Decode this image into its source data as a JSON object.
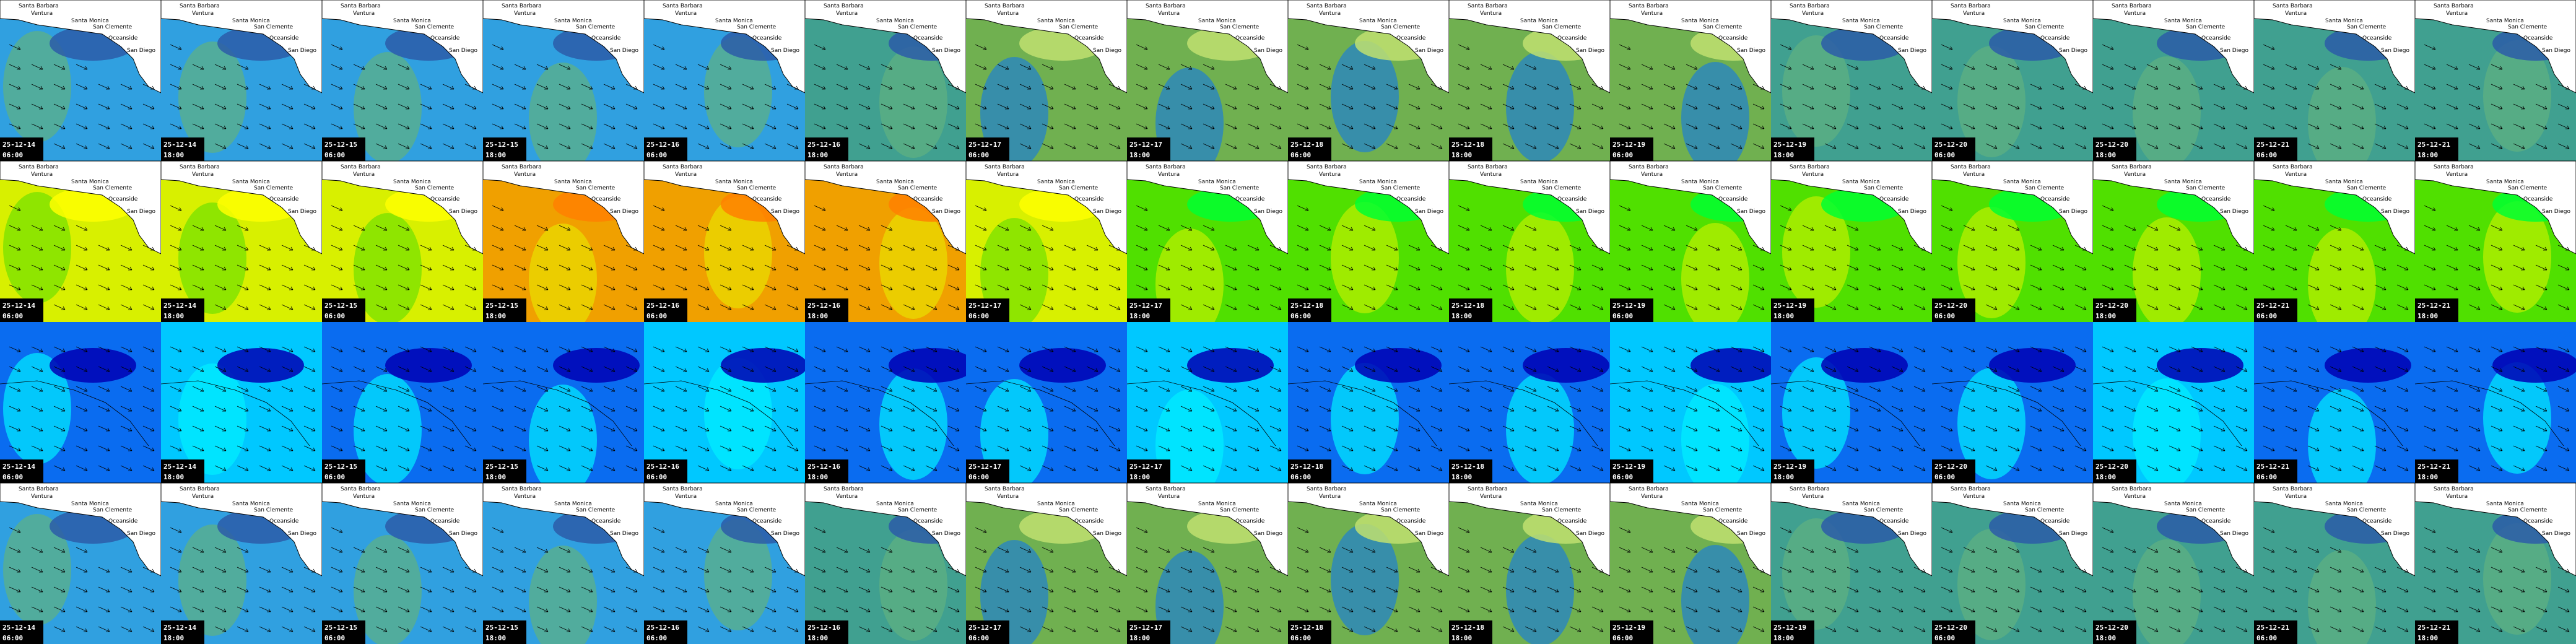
{
  "places": [
    "Santa Barbara",
    "Ventura",
    "Santa Monica",
    "San Clemente",
    "Oceanside",
    "San Diego"
  ],
  "rows": [
    [
      {
        "date": "25-12-14",
        "time": "06:00"
      },
      {
        "date": "25-12-14",
        "time": "18:00"
      },
      {
        "date": "25-12-15",
        "time": "06:00"
      },
      {
        "date": "25-12-15",
        "time": "18:00"
      },
      {
        "date": "25-12-16",
        "time": "06:00"
      },
      {
        "date": "25-12-16",
        "time": "18:00"
      },
      {
        "date": "25-12-17",
        "time": "06:00"
      },
      {
        "date": "25-12-17",
        "time": "18:00"
      },
      {
        "date": "25-12-18",
        "time": "06:00"
      },
      {
        "date": "25-12-18",
        "time": "18:00"
      },
      {
        "date": "25-12-19",
        "time": "06:00"
      },
      {
        "date": "25-12-19",
        "time": "18:00"
      },
      {
        "date": "25-12-20",
        "time": "06:00"
      },
      {
        "date": "25-12-20",
        "time": "18:00"
      },
      {
        "date": "25-12-21",
        "time": "06:00"
      },
      {
        "date": "25-12-21",
        "time": "18:00"
      }
    ],
    [
      {
        "date": "25-12-14",
        "time": "06:00"
      },
      {
        "date": "25-12-14",
        "time": "18:00"
      },
      {
        "date": "25-12-15",
        "time": "06:00"
      },
      {
        "date": "25-12-15",
        "time": "18:00"
      },
      {
        "date": "25-12-16",
        "time": "06:00"
      },
      {
        "date": "25-12-16",
        "time": "18:00"
      },
      {
        "date": "25-12-17",
        "time": "06:00"
      },
      {
        "date": "25-12-17",
        "time": "18:00"
      },
      {
        "date": "25-12-18",
        "time": "06:00"
      },
      {
        "date": "25-12-18",
        "time": "18:00"
      },
      {
        "date": "25-12-19",
        "time": "06:00"
      },
      {
        "date": "25-12-19",
        "time": "18:00"
      },
      {
        "date": "25-12-20",
        "time": "06:00"
      },
      {
        "date": "25-12-20",
        "time": "18:00"
      },
      {
        "date": "25-12-21",
        "time": "06:00"
      },
      {
        "date": "25-12-21",
        "time": "18:00"
      }
    ],
    [
      {
        "date": "25-12-14",
        "time": "06:00"
      },
      {
        "date": "25-12-14",
        "time": "18:00"
      },
      {
        "date": "25-12-15",
        "time": "06:00"
      },
      {
        "date": "25-12-15",
        "time": "18:00"
      },
      {
        "date": "25-12-16",
        "time": "06:00"
      },
      {
        "date": "25-12-16",
        "time": "18:00"
      },
      {
        "date": "25-12-17",
        "time": "06:00"
      },
      {
        "date": "25-12-17",
        "time": "18:00"
      },
      {
        "date": "25-12-18",
        "time": "06:00"
      },
      {
        "date": "25-12-18",
        "time": "18:00"
      },
      {
        "date": "25-12-19",
        "time": "06:00"
      },
      {
        "date": "25-12-19",
        "time": "18:00"
      },
      {
        "date": "25-12-20",
        "time": "06:00"
      },
      {
        "date": "25-12-20",
        "time": "18:00"
      },
      {
        "date": "25-12-21",
        "time": "06:00"
      },
      {
        "date": "25-12-21",
        "time": "18:00"
      }
    ],
    [
      {
        "date": "25-12-14",
        "time": "06:00"
      },
      {
        "date": "25-12-14",
        "time": "18:00"
      },
      {
        "date": "25-12-15",
        "time": "06:00"
      },
      {
        "date": "25-12-15",
        "time": "18:00"
      },
      {
        "date": "25-12-16",
        "time": "06:00"
      },
      {
        "date": "25-12-16",
        "time": "18:00"
      },
      {
        "date": "25-12-17",
        "time": "06:00"
      },
      {
        "date": "25-12-17",
        "time": "18:00"
      },
      {
        "date": "25-12-18",
        "time": "06:00"
      },
      {
        "date": "25-12-18",
        "time": "18:00"
      },
      {
        "date": "25-12-19",
        "time": "06:00"
      },
      {
        "date": "25-12-19",
        "time": "18:00"
      },
      {
        "date": "25-12-20",
        "time": "06:00"
      },
      {
        "date": "25-12-20",
        "time": "18:00"
      },
      {
        "date": "25-12-21",
        "time": "06:00"
      },
      {
        "date": "25-12-21",
        "time": "18:00"
      }
    ]
  ]
}
